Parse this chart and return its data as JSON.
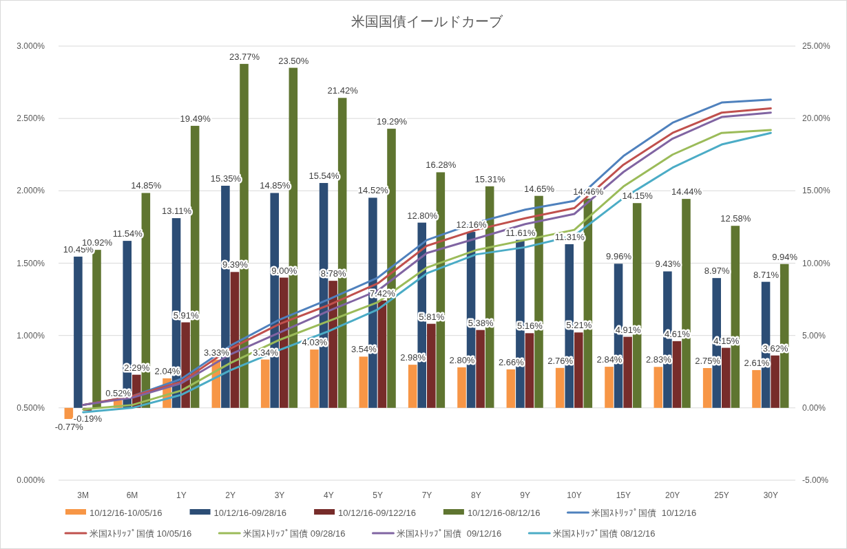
{
  "chart_data": {
    "type": "bar",
    "title": "米国国債イールドカーブ",
    "categories": [
      "3M",
      "6M",
      "1Y",
      "2Y",
      "3Y",
      "4Y",
      "5Y",
      "7Y",
      "8Y",
      "9Y",
      "10Y",
      "15Y",
      "20Y",
      "25Y",
      "30Y"
    ],
    "ylim": [
      0,
      3
    ],
    "yticks": [
      {
        "value": 0,
        "label": "0.000%"
      },
      {
        "value": 0.5,
        "label": "0.500%"
      },
      {
        "value": 1,
        "label": "1.000%"
      },
      {
        "value": 1.5,
        "label": "1.500%"
      },
      {
        "value": 2,
        "label": "2.000%"
      },
      {
        "value": 2.5,
        "label": "2.500%"
      },
      {
        "value": 3,
        "label": "3.000%"
      }
    ],
    "y2lim": [
      -5,
      25
    ],
    "y2ticks": [
      {
        "value": -5,
        "label": "-5.00%"
      },
      {
        "value": 0,
        "label": "0.00%"
      },
      {
        "value": 5,
        "label": "5.00%"
      },
      {
        "value": 10,
        "label": "10.00%"
      },
      {
        "value": 15,
        "label": "15.00%"
      },
      {
        "value": 20,
        "label": "20.00%"
      },
      {
        "value": 25,
        "label": "25.00%"
      }
    ],
    "grid": "y",
    "legend": "bottom",
    "series": [
      {
        "name": "10/12/16-10/05/16",
        "axis": "y2",
        "color": "#f79646",
        "values": [
          -0.77,
          0.52,
          2.04,
          3.33,
          3.34,
          4.03,
          3.54,
          2.98,
          2.8,
          2.66,
          2.76,
          2.84,
          2.83,
          2.75,
          2.61
        ],
        "value_labels": [
          "-0.77%",
          "0.52%",
          "2.04%",
          "3.33%",
          "3.34%",
          "4.03%",
          "3.54%",
          "2.98%",
          "2.80%",
          "2.66%",
          "2.76%",
          "2.84%",
          "2.83%",
          "2.75%",
          "2.61%"
        ]
      },
      {
        "name": "10/12/16-09/28/16",
        "axis": "y2",
        "color": "#2c4d75",
        "values": [
          10.45,
          11.54,
          13.11,
          15.35,
          14.85,
          15.54,
          14.52,
          12.8,
          12.16,
          11.61,
          11.31,
          9.96,
          9.43,
          8.97,
          8.71
        ],
        "value_labels": [
          "10.45%",
          "11.54%",
          "13.11%",
          "15.35%",
          "14.85%",
          "15.54%",
          "14.52%",
          "12.80%",
          "12.16%",
          "11.61%",
          "11.31%",
          "9.96%",
          "9.43%",
          "8.97%",
          "8.71%"
        ]
      },
      {
        "name": "10/12/16-09/122/16",
        "axis": "y2",
        "color": "#772c2a",
        "values": [
          -0.19,
          2.29,
          5.91,
          9.39,
          9.0,
          8.78,
          7.42,
          5.81,
          5.38,
          5.16,
          5.21,
          4.91,
          4.61,
          4.15,
          3.62
        ],
        "value_labels": [
          "-0.19%",
          "2.29%",
          "5.91%",
          "9.39%",
          "9.00%",
          "8.78%",
          "7.42%",
          "5.81%",
          "5.38%",
          "5.16%",
          "5.21%",
          "4.91%",
          "4.61%",
          "4.15%",
          "3.62%"
        ]
      },
      {
        "name": "10/12/16-08/12/16",
        "axis": "y2",
        "color": "#5f7530",
        "values": [
          10.92,
          14.85,
          19.49,
          23.77,
          23.5,
          21.42,
          19.29,
          16.28,
          15.31,
          14.65,
          14.46,
          14.15,
          14.44,
          12.58,
          9.94
        ],
        "value_labels": [
          "10.92%",
          "14.85%",
          "19.49%",
          "23.77%",
          "23.50%",
          "21.42%",
          "19.29%",
          "16.28%",
          "15.31%",
          "14.65%",
          "14.46%",
          "14.15%",
          "14.44%",
          "12.58%",
          "9.94%"
        ]
      },
      {
        "name": "米国ｽﾄﾘｯﾌﾟ国債  10/12/16",
        "type": "line",
        "axis": "y",
        "color": "#4f81bd",
        "values": [
          0.52,
          0.58,
          0.7,
          0.93,
          1.11,
          1.25,
          1.4,
          1.66,
          1.78,
          1.87,
          1.93,
          2.24,
          2.47,
          2.61,
          2.63
        ]
      },
      {
        "name": "米国ｽﾄﾘｯﾌﾟ国債 10/05/16",
        "type": "line",
        "axis": "y",
        "color": "#c0504d",
        "values": [
          0.52,
          0.58,
          0.68,
          0.91,
          1.08,
          1.21,
          1.36,
          1.62,
          1.73,
          1.81,
          1.88,
          2.18,
          2.4,
          2.54,
          2.57
        ]
      },
      {
        "name": "米国ｽﾄﾘｯﾌﾟ国債 09/28/16",
        "type": "line",
        "axis": "y",
        "color": "#9bbb59",
        "values": [
          0.49,
          0.52,
          0.62,
          0.81,
          0.97,
          1.1,
          1.23,
          1.47,
          1.59,
          1.66,
          1.73,
          2.03,
          2.25,
          2.4,
          2.42
        ]
      },
      {
        "name": "米国ｽﾄﾘｯﾌﾟ国債  09/12/16",
        "type": "line",
        "axis": "y",
        "color": "#8064a2",
        "values": [
          0.52,
          0.57,
          0.67,
          0.87,
          1.02,
          1.17,
          1.31,
          1.57,
          1.67,
          1.77,
          1.84,
          2.13,
          2.36,
          2.51,
          2.54
        ]
      },
      {
        "name": "米国ｽﾄﾘｯﾌﾟ国債 08/12/16",
        "type": "line",
        "axis": "y",
        "color": "#4bacc6",
        "values": [
          0.47,
          0.5,
          0.59,
          0.76,
          0.9,
          1.03,
          1.18,
          1.43,
          1.56,
          1.61,
          1.69,
          1.95,
          2.16,
          2.32,
          2.4
        ]
      }
    ]
  }
}
